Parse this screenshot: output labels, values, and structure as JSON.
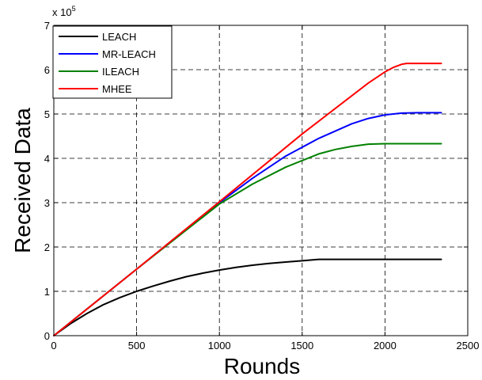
{
  "chart_data": {
    "type": "line",
    "title": "",
    "xlabel": "Rounds",
    "ylabel": "Received Data",
    "y_exponent_label": "x 10",
    "y_exponent": "5",
    "xlim": [
      0,
      2500
    ],
    "ylim": [
      0,
      7
    ],
    "xticks": [
      0,
      500,
      1000,
      1500,
      2000,
      2500
    ],
    "yticks": [
      0,
      1,
      2,
      3,
      4,
      5,
      6,
      7
    ],
    "grid": true,
    "legend_position": "top-left",
    "series": [
      {
        "name": "LEACH",
        "color": "#000000",
        "x": [
          0,
          100,
          200,
          300,
          400,
          500,
          600,
          700,
          800,
          900,
          1000,
          1100,
          1200,
          1300,
          1400,
          1500,
          1600,
          2340
        ],
        "y": [
          0,
          0.27,
          0.5,
          0.7,
          0.86,
          1.0,
          1.12,
          1.23,
          1.33,
          1.41,
          1.48,
          1.54,
          1.59,
          1.63,
          1.66,
          1.69,
          1.72,
          1.72
        ]
      },
      {
        "name": "MR-LEACH",
        "color": "#0000ff",
        "x": [
          0,
          500,
          1000,
          1200,
          1400,
          1600,
          1800,
          1900,
          2000,
          2100,
          2200,
          2340
        ],
        "y": [
          0,
          1.5,
          3.0,
          3.55,
          4.05,
          4.45,
          4.78,
          4.9,
          4.98,
          5.02,
          5.03,
          5.03
        ]
      },
      {
        "name": "ILEACH",
        "color": "#008000",
        "x": [
          0,
          500,
          1000,
          1200,
          1400,
          1500,
          1600,
          1700,
          1800,
          1900,
          2000,
          2340
        ],
        "y": [
          0,
          1.5,
          2.97,
          3.42,
          3.8,
          3.95,
          4.1,
          4.2,
          4.27,
          4.32,
          4.33,
          4.33
        ]
      },
      {
        "name": "MHEE",
        "color": "#ff0000",
        "x": [
          0,
          500,
          1000,
          1500,
          1900,
          2000,
          2050,
          2100,
          2130,
          2200,
          2340
        ],
        "y": [
          0,
          1.5,
          3.02,
          4.55,
          5.7,
          5.95,
          6.05,
          6.12,
          6.14,
          6.14,
          6.14
        ]
      }
    ]
  }
}
